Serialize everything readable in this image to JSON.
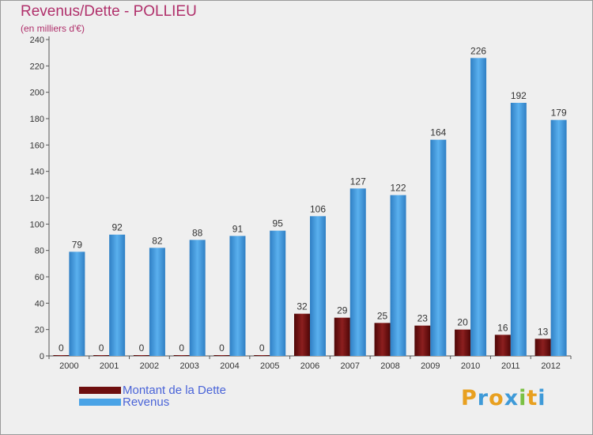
{
  "header": {
    "title": "Revenus/Dette - POLLIEU",
    "subtitle": "(en milliers d'€)"
  },
  "chart_data": {
    "type": "bar",
    "categories": [
      "2000",
      "2001",
      "2002",
      "2003",
      "2004",
      "2005",
      "2006",
      "2007",
      "2008",
      "2009",
      "2010",
      "2011",
      "2012"
    ],
    "series": [
      {
        "name": "Montant de la Dette",
        "values": [
          0,
          0,
          0,
          0,
          0,
          0,
          32,
          29,
          25,
          23,
          20,
          16,
          13
        ],
        "color": "#6e0e0e"
      },
      {
        "name": "Revenus",
        "values": [
          79,
          92,
          82,
          88,
          91,
          95,
          106,
          127,
          122,
          164,
          226,
          192,
          179
        ],
        "color": "#4aa3e6"
      }
    ],
    "y_ticks": [
      0,
      20,
      40,
      60,
      80,
      100,
      120,
      140,
      160,
      180,
      200,
      220,
      240
    ],
    "ylim": [
      0,
      240
    ],
    "grid": false,
    "legend_position": "bottom-left"
  },
  "legend": {
    "items": [
      {
        "label": "Montant de la Dette",
        "color": "#6e0e0e"
      },
      {
        "label": "Revenus",
        "color": "#4aa3e6"
      }
    ]
  },
  "logo": {
    "letters": [
      "P",
      "r",
      "o",
      "x",
      "i",
      "t",
      "i"
    ],
    "colors": [
      "#e8a020",
      "#3e9ad8",
      "#e8a020",
      "#3e9ad8",
      "#7ac043",
      "#e8a020",
      "#3e9ad8"
    ]
  }
}
